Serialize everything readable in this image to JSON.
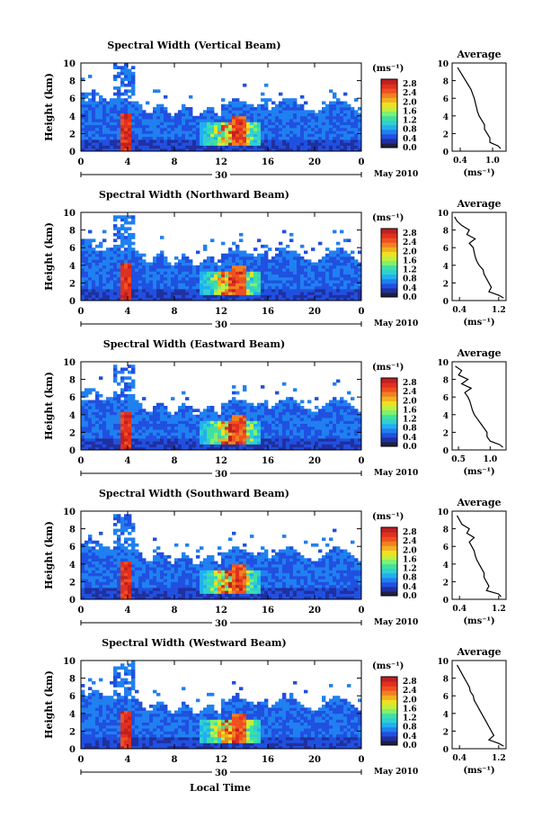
{
  "chart_data": {
    "type": "heatmap",
    "colorbar": {
      "unit_label": "(ms⁻¹)",
      "ticks": [
        "2.8",
        "2.4",
        "2.0",
        "1.6",
        "1.2",
        "0.8",
        "0.4",
        "0.0"
      ],
      "tick_values": [
        2.8,
        2.4,
        2.0,
        1.6,
        1.2,
        0.8,
        0.4,
        0.0
      ],
      "range": [
        0,
        3.0
      ],
      "colors": [
        "#202040",
        "#2030a0",
        "#2050e0",
        "#2080f0",
        "#20b0f0",
        "#30d0d0",
        "#40e0a0",
        "#80f070",
        "#c0f040",
        "#f0e020",
        "#f0b020",
        "#f08020",
        "#f05020",
        "#e03020",
        "#c02020"
      ]
    },
    "x_axis": {
      "ticks": [
        "0",
        "4",
        "8",
        "12",
        "16",
        "20",
        "0"
      ],
      "tick_values": [
        0,
        4,
        8,
        12,
        16,
        20,
        24
      ],
      "range": [
        0,
        24
      ],
      "date_label": "30",
      "month_label": "May 2010",
      "xlabel": "Local Time"
    },
    "y_axis": {
      "ticks": [
        "0",
        "2",
        "4",
        "6",
        "8",
        "10"
      ],
      "tick_values": [
        0,
        2,
        4,
        6,
        8,
        10
      ],
      "range": [
        0,
        10
      ],
      "ylabel": "Height (km)"
    },
    "panels": [
      {
        "title": "Spectral Width (Vertical Beam)",
        "avg_title": "Average",
        "avg_xlabel": "(ms⁻¹)",
        "avg_xticks": [
          "0.4",
          "1.0"
        ],
        "avg_xtick_values": [
          0.4,
          1.0
        ],
        "avg_xlim": [
          0.25,
          1.25
        ],
        "profile_height": [
          0.3,
          0.6,
          1,
          1.5,
          2,
          2.5,
          3,
          3.5,
          4,
          4.5,
          5,
          5.5,
          6,
          6.5,
          7,
          7.5,
          8,
          8.5,
          9,
          9.5
        ],
        "profile_value": [
          1.15,
          1.1,
          0.95,
          0.95,
          0.9,
          0.85,
          0.85,
          0.8,
          0.75,
          0.72,
          0.7,
          0.68,
          0.66,
          0.63,
          0.6,
          0.55,
          0.5,
          0.45,
          0.4,
          0.35
        ]
      },
      {
        "title": "Spectral Width (Northward Beam)",
        "avg_title": "Average",
        "avg_xlabel": "(ms⁻¹)",
        "avg_xticks": [
          "0.4",
          "1.2"
        ],
        "avg_xtick_values": [
          0.4,
          1.2
        ],
        "avg_xlim": [
          0.25,
          1.35
        ],
        "profile_height": [
          0.3,
          0.6,
          1,
          1.5,
          2,
          2.5,
          3,
          3.5,
          4,
          4.5,
          5,
          5.5,
          6,
          6.5,
          7,
          7.5,
          8,
          8.5,
          9,
          9.5
        ],
        "profile_value": [
          1.3,
          1.2,
          1.0,
          1.05,
          1.0,
          0.95,
          0.9,
          0.88,
          0.8,
          0.75,
          0.72,
          0.7,
          0.68,
          0.6,
          0.72,
          0.55,
          0.6,
          0.45,
          0.35,
          0.3
        ]
      },
      {
        "title": "Spectral Width (Eastward Beam)",
        "avg_title": "Average",
        "avg_xlabel": "(ms⁻¹)",
        "avg_xticks": [
          "0.5",
          "1.0"
        ],
        "avg_xtick_values": [
          0.5,
          1.0
        ],
        "avg_xlim": [
          0.4,
          1.25
        ],
        "profile_height": [
          0.3,
          0.6,
          1,
          1.5,
          2,
          2.5,
          3,
          3.5,
          4,
          4.5,
          5,
          5.5,
          6,
          6.5,
          7,
          7.5,
          8,
          8.5,
          9,
          9.5
        ],
        "profile_value": [
          1.2,
          1.15,
          1.0,
          0.95,
          0.95,
          0.9,
          0.85,
          0.8,
          0.75,
          0.72,
          0.7,
          0.68,
          0.65,
          0.6,
          0.7,
          0.55,
          0.65,
          0.5,
          0.55,
          0.45
        ]
      },
      {
        "title": "Spectral Width (Southward Beam)",
        "avg_title": "Average",
        "avg_xlabel": "(ms⁻¹)",
        "avg_xticks": [
          "0.4",
          "1.2"
        ],
        "avg_xtick_values": [
          0.4,
          1.2
        ],
        "avg_xlim": [
          0.25,
          1.35
        ],
        "profile_height": [
          0.3,
          0.6,
          1,
          1.5,
          2,
          2.5,
          3,
          3.5,
          4,
          4.5,
          5,
          5.5,
          6,
          6.5,
          7,
          7.5,
          8,
          8.5,
          9,
          9.5
        ],
        "profile_value": [
          1.25,
          1.2,
          0.95,
          1.0,
          0.95,
          0.9,
          0.9,
          0.85,
          0.8,
          0.75,
          0.72,
          0.7,
          0.65,
          0.6,
          0.7,
          0.55,
          0.6,
          0.45,
          0.4,
          0.35
        ]
      },
      {
        "title": "Spectral Width (Westward Beam)",
        "avg_title": "Average",
        "avg_xlabel": "(ms⁻¹)",
        "avg_xticks": [
          "0.4",
          "1.2"
        ],
        "avg_xtick_values": [
          0.4,
          1.2
        ],
        "avg_xlim": [
          0.25,
          1.35
        ],
        "profile_height": [
          0.3,
          0.6,
          1,
          1.5,
          2,
          2.5,
          3,
          3.5,
          4,
          4.5,
          5,
          5.5,
          6,
          6.5,
          7,
          7.5,
          8,
          8.5,
          9,
          9.5
        ],
        "profile_value": [
          1.3,
          1.2,
          1.0,
          1.1,
          1.05,
          1.0,
          0.95,
          0.9,
          0.85,
          0.8,
          0.75,
          0.7,
          0.68,
          0.62,
          0.6,
          0.55,
          0.5,
          0.45,
          0.4,
          0.35
        ]
      }
    ]
  }
}
